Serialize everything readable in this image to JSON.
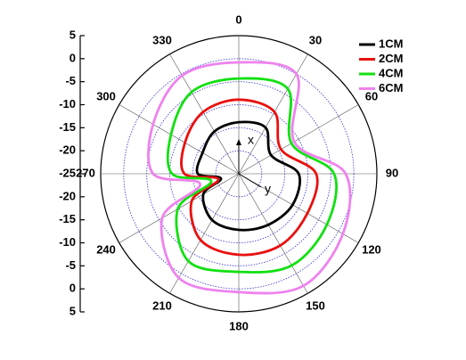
{
  "chart_data": {
    "type": "polar",
    "theta": [
      0,
      30,
      60,
      90,
      120,
      150,
      180,
      210,
      240,
      255,
      270,
      300,
      330
    ],
    "thetaticks": [
      0,
      30,
      60,
      90,
      120,
      150,
      180,
      210,
      240,
      270,
      300,
      330
    ],
    "rlim": [
      -25,
      5
    ],
    "rticks": [
      -25,
      -20,
      -15,
      -10,
      -5,
      0,
      5
    ],
    "grid": true,
    "legend": "upper right",
    "annotations": [
      "x",
      "y"
    ],
    "series": [
      {
        "name": "1CM",
        "color": "#000000",
        "values": [
          -13.8,
          -13.4,
          -16.9,
          -12.0,
          -11.5,
          -12.2,
          -12.8,
          -13.4,
          -16.1,
          -21,
          -16.1,
          -15.9,
          -14.4
        ]
      },
      {
        "name": "2CM",
        "color": "#e8110f",
        "values": [
          -8.9,
          -9.5,
          -14.4,
          -8.2,
          -7.8,
          -7.0,
          -7.4,
          -8.4,
          -13.2,
          -20.4,
          -13.2,
          -11.5,
          -9.5
        ]
      },
      {
        "name": "4CM",
        "color": "#11e011",
        "values": [
          -4.3,
          -3.7,
          -11.8,
          -4.3,
          -2.9,
          -2.0,
          -3.7,
          -3.1,
          -9.7,
          -18.8,
          -10.5,
          -8.0,
          -4.5
        ]
      },
      {
        "name": "6CM",
        "color": "#ee82ee",
        "values": [
          -0.8,
          0.0,
          -11.1,
          -1.8,
          1.1,
          3.1,
          0.7,
          1.1,
          -5.8,
          -16.3,
          -6.4,
          -3.5,
          -0.4
        ]
      }
    ]
  }
}
